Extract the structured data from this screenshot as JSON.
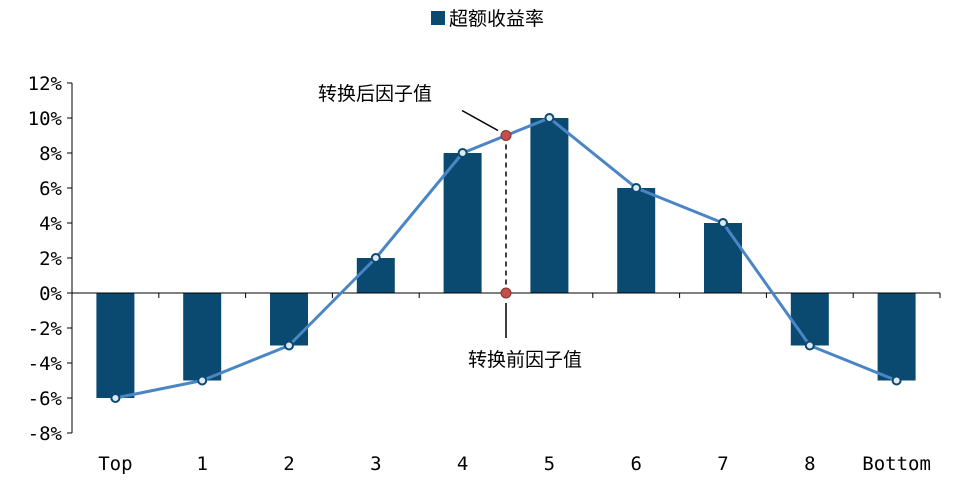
{
  "colors": {
    "bar": "#0a4a70",
    "line": "#4a86c5",
    "marker_highlight": "#c0504d",
    "axis": "#000000"
  },
  "chart_data": {
    "type": "bar",
    "categories": [
      "Top",
      "1",
      "2",
      "3",
      "4",
      "5",
      "6",
      "7",
      "8",
      "Bottom"
    ],
    "series": [
      {
        "name": "超额收益率",
        "type": "bar",
        "values": [
          -0.06,
          -0.05,
          -0.03,
          0.02,
          0.08,
          0.1,
          0.06,
          0.04,
          -0.03,
          -0.05
        ]
      },
      {
        "type": "line",
        "values": [
          -0.06,
          -0.05,
          -0.03,
          0.02,
          0.08,
          0.1,
          0.06,
          0.04,
          -0.03,
          -0.05
        ]
      }
    ],
    "ylim": [
      -0.08,
      0.12
    ],
    "yticks": [
      "12%",
      "10%",
      "8%",
      "6%",
      "4%",
      "2%",
      "0%",
      "-2%",
      "-4%",
      "-6%",
      "-8%"
    ],
    "ytick_values": [
      0.12,
      0.1,
      0.08,
      0.06,
      0.04,
      0.02,
      0.0,
      -0.02,
      -0.04,
      -0.06,
      -0.08
    ],
    "legend": {
      "position": "top-center",
      "label": "超额收益率"
    },
    "grid": false,
    "annotations": [
      {
        "text": "转换后因子值",
        "x_between": [
          "4",
          "5"
        ],
        "y": 0.09
      },
      {
        "text": "转换前因子值",
        "x_between": [
          "4",
          "5"
        ],
        "y": 0.0
      }
    ]
  }
}
